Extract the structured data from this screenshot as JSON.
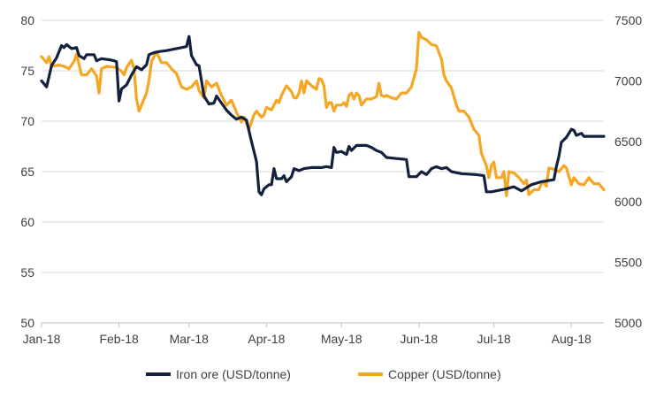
{
  "chart_data": {
    "type": "line",
    "title": "",
    "x_ticks": [
      "Jan-18",
      "Feb-18",
      "Mar-18",
      "Apr-18",
      "May-18",
      "Jun-18",
      "Jul-18",
      "Aug-18"
    ],
    "x_range_days": [
      0,
      225
    ],
    "y_left": {
      "ticks": [
        "50",
        "55",
        "60",
        "65",
        "70",
        "75",
        "80"
      ],
      "range": [
        50,
        80
      ]
    },
    "y_right": {
      "ticks": [
        "5000",
        "5500",
        "6000",
        "6500",
        "7000",
        "7500"
      ],
      "range": [
        5000,
        7500
      ]
    },
    "grid": "horizontal",
    "legend_position": "bottom",
    "series": [
      {
        "name": "Iron ore (USD/tonne)",
        "axis": "left",
        "color": "#14213d",
        "points": [
          [
            0,
            74.0
          ],
          [
            2,
            73.4
          ],
          [
            4,
            75.5
          ],
          [
            6,
            76.3
          ],
          [
            8,
            77.5
          ],
          [
            9,
            77.3
          ],
          [
            10,
            77.6
          ],
          [
            12,
            77.2
          ],
          [
            14,
            77.3
          ],
          [
            15,
            76.5
          ],
          [
            17,
            76.2
          ],
          [
            18,
            76.6
          ],
          [
            21,
            76.6
          ],
          [
            22,
            76.0
          ],
          [
            24,
            76.2
          ],
          [
            27,
            76.1
          ],
          [
            29,
            76.0
          ],
          [
            30,
            75.9
          ],
          [
            31,
            72.0
          ],
          [
            32,
            73.2
          ],
          [
            34,
            73.6
          ],
          [
            36,
            74.6
          ],
          [
            38,
            75.4
          ],
          [
            40,
            75.1
          ],
          [
            42,
            75.6
          ],
          [
            43,
            76.6
          ],
          [
            45,
            76.8
          ],
          [
            47,
            76.9
          ],
          [
            50,
            77.0
          ],
          [
            52,
            77.1
          ],
          [
            54,
            77.2
          ],
          [
            56,
            77.3
          ],
          [
            58,
            77.4
          ],
          [
            59,
            78.4
          ],
          [
            60,
            76.5
          ],
          [
            62,
            75.6
          ],
          [
            63,
            75.5
          ],
          [
            64,
            74.0
          ],
          [
            65,
            72.5
          ],
          [
            67,
            71.7
          ],
          [
            69,
            71.8
          ],
          [
            70,
            72.5
          ],
          [
            72,
            71.8
          ],
          [
            74,
            71.1
          ],
          [
            76,
            70.6
          ],
          [
            78,
            70.2
          ],
          [
            80,
            70.4
          ],
          [
            82,
            70.1
          ],
          [
            84,
            68.0
          ],
          [
            86,
            66.0
          ],
          [
            87,
            63.0
          ],
          [
            88,
            62.7
          ],
          [
            89,
            63.3
          ],
          [
            91,
            63.7
          ],
          [
            92,
            63.7
          ],
          [
            93,
            65.3
          ],
          [
            94,
            64.3
          ],
          [
            96,
            64.3
          ],
          [
            97,
            64.6
          ],
          [
            98,
            64.0
          ],
          [
            100,
            64.5
          ],
          [
            101,
            65.3
          ],
          [
            103,
            65.1
          ],
          [
            105,
            65.3
          ],
          [
            108,
            65.4
          ],
          [
            112,
            65.4
          ],
          [
            114,
            65.5
          ],
          [
            116,
            65.4
          ],
          [
            117,
            67.4
          ],
          [
            118,
            66.9
          ],
          [
            120,
            67.0
          ],
          [
            122,
            66.7
          ],
          [
            123,
            67.5
          ],
          [
            124,
            67.1
          ],
          [
            126,
            67.6
          ],
          [
            130,
            67.6
          ],
          [
            132,
            67.4
          ],
          [
            134,
            67.1
          ],
          [
            136,
            66.9
          ],
          [
            138,
            66.4
          ],
          [
            142,
            66.3
          ],
          [
            146,
            66.2
          ],
          [
            147,
            64.5
          ],
          [
            150,
            64.5
          ],
          [
            152,
            65.0
          ],
          [
            154,
            64.7
          ],
          [
            156,
            65.3
          ],
          [
            158,
            65.5
          ],
          [
            160,
            65.3
          ],
          [
            162,
            65.4
          ],
          [
            164,
            65.0
          ],
          [
            168,
            64.8
          ],
          [
            174,
            64.7
          ],
          [
            177,
            64.6
          ],
          [
            178,
            63.0
          ],
          [
            180,
            63.0
          ],
          [
            186,
            63.3
          ],
          [
            189,
            63.5
          ],
          [
            192,
            63.1
          ],
          [
            194,
            63.4
          ],
          [
            196,
            63.7
          ],
          [
            200,
            64.0
          ],
          [
            205,
            64.2
          ],
          [
            206,
            65.5
          ],
          [
            207,
            66.5
          ],
          [
            208,
            67.9
          ],
          [
            210,
            68.4
          ],
          [
            212,
            69.2
          ],
          [
            213,
            69.1
          ],
          [
            214,
            68.6
          ],
          [
            216,
            68.8
          ],
          [
            217,
            68.5
          ],
          [
            225,
            68.5
          ]
        ]
      },
      {
        "name": "Copper (USD/tonne)",
        "axis": "right",
        "color": "#f5a623",
        "points": [
          [
            0,
            7200
          ],
          [
            2,
            7150
          ],
          [
            3,
            7200
          ],
          [
            4,
            7120
          ],
          [
            7,
            7130
          ],
          [
            9,
            7120
          ],
          [
            11,
            7100
          ],
          [
            13,
            7160
          ],
          [
            14,
            7220
          ],
          [
            16,
            7050
          ],
          [
            18,
            7050
          ],
          [
            20,
            7100
          ],
          [
            22,
            7040
          ],
          [
            23,
            6900
          ],
          [
            24,
            7100
          ],
          [
            26,
            7120
          ],
          [
            30,
            7110
          ],
          [
            32,
            7080
          ],
          [
            33,
            7050
          ],
          [
            34,
            7110
          ],
          [
            35,
            7140
          ],
          [
            36,
            7170
          ],
          [
            37,
            7100
          ],
          [
            38,
            6850
          ],
          [
            39,
            6750
          ],
          [
            40,
            6800
          ],
          [
            42,
            6900
          ],
          [
            43,
            7000
          ],
          [
            44,
            7160
          ],
          [
            46,
            7240
          ],
          [
            48,
            7150
          ],
          [
            50,
            7150
          ],
          [
            52,
            7100
          ],
          [
            54,
            7060
          ],
          [
            56,
            6950
          ],
          [
            58,
            6930
          ],
          [
            60,
            6950
          ],
          [
            62,
            7000
          ],
          [
            63,
            6920
          ],
          [
            65,
            6860
          ],
          [
            66,
            7000
          ],
          [
            68,
            6950
          ],
          [
            70,
            6980
          ],
          [
            72,
            6880
          ],
          [
            74,
            6800
          ],
          [
            76,
            6840
          ],
          [
            78,
            6740
          ],
          [
            80,
            6660
          ],
          [
            81,
            6700
          ],
          [
            83,
            6600
          ],
          [
            85,
            6720
          ],
          [
            86,
            6750
          ],
          [
            88,
            6700
          ],
          [
            89,
            6720
          ],
          [
            90,
            6780
          ],
          [
            92,
            6760
          ],
          [
            94,
            6840
          ],
          [
            95,
            6820
          ],
          [
            96,
            6880
          ],
          [
            98,
            6960
          ],
          [
            100,
            6910
          ],
          [
            101,
            6860
          ],
          [
            102,
            6860
          ],
          [
            103,
            6900
          ],
          [
            104,
            7000
          ],
          [
            105,
            6900
          ],
          [
            106,
            7000
          ],
          [
            107,
            6980
          ],
          [
            108,
            6960
          ],
          [
            110,
            6930
          ],
          [
            111,
            7020
          ],
          [
            112,
            7010
          ],
          [
            113,
            6960
          ],
          [
            114,
            6780
          ],
          [
            115,
            6820
          ],
          [
            116,
            6820
          ],
          [
            117,
            6750
          ],
          [
            118,
            6800
          ],
          [
            120,
            6800
          ],
          [
            121,
            6820
          ],
          [
            122,
            6790
          ],
          [
            123,
            6880
          ],
          [
            124,
            6900
          ],
          [
            125,
            6850
          ],
          [
            126,
            6900
          ],
          [
            127,
            6880
          ],
          [
            128,
            6800
          ],
          [
            130,
            6850
          ],
          [
            132,
            6850
          ],
          [
            134,
            6870
          ],
          [
            135,
            6980
          ],
          [
            136,
            6880
          ],
          [
            137,
            6870
          ],
          [
            138,
            6880
          ],
          [
            140,
            6860
          ],
          [
            142,
            6850
          ],
          [
            144,
            6900
          ],
          [
            146,
            6900
          ],
          [
            148,
            6950
          ],
          [
            150,
            7100
          ],
          [
            151,
            7400
          ],
          [
            152,
            7360
          ],
          [
            154,
            7340
          ],
          [
            156,
            7300
          ],
          [
            158,
            7290
          ],
          [
            160,
            7180
          ],
          [
            161,
            7050
          ],
          [
            162,
            7000
          ],
          [
            164,
            6940
          ],
          [
            166,
            6800
          ],
          [
            167,
            6750
          ],
          [
            169,
            6750
          ],
          [
            171,
            6700
          ],
          [
            173,
            6600
          ],
          [
            175,
            6550
          ],
          [
            176,
            6400
          ],
          [
            177,
            6350
          ],
          [
            178,
            6300
          ],
          [
            179,
            6200
          ],
          [
            180,
            6300
          ],
          [
            181,
            6330
          ],
          [
            182,
            6200
          ],
          [
            184,
            6200
          ],
          [
            185,
            6250
          ],
          [
            186,
            6050
          ],
          [
            187,
            6250
          ],
          [
            189,
            6240
          ],
          [
            191,
            6200
          ],
          [
            193,
            6150
          ],
          [
            194,
            6180
          ],
          [
            195,
            6060
          ],
          [
            197,
            6100
          ],
          [
            199,
            6100
          ],
          [
            200,
            6150
          ],
          [
            201,
            6160
          ],
          [
            202,
            6130
          ],
          [
            203,
            6280
          ],
          [
            205,
            6270
          ],
          [
            207,
            6250
          ],
          [
            209,
            6300
          ],
          [
            210,
            6280
          ],
          [
            212,
            6140
          ],
          [
            213,
            6200
          ],
          [
            215,
            6150
          ],
          [
            217,
            6140
          ],
          [
            219,
            6200
          ],
          [
            221,
            6150
          ],
          [
            223,
            6150
          ],
          [
            225,
            6100
          ]
        ]
      }
    ]
  }
}
